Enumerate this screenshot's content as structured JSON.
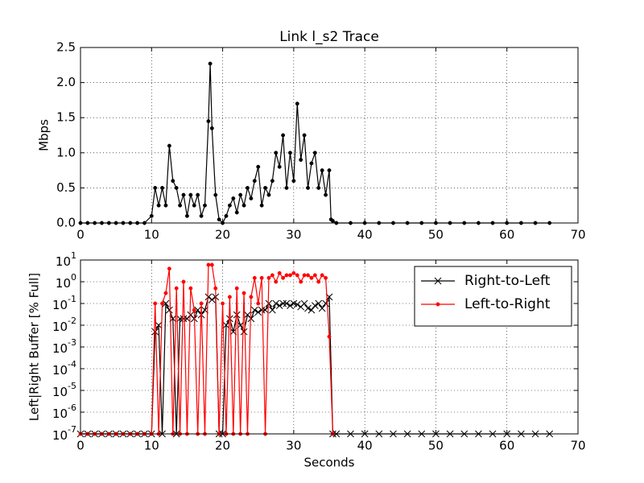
{
  "chart_data": [
    {
      "type": "line",
      "title": "Link l_s2 Trace",
      "ylabel": "Mbps",
      "xlim": [
        0,
        70
      ],
      "xticks": [
        0,
        10,
        20,
        30,
        40,
        50,
        60,
        70
      ],
      "ylim": [
        0,
        2.5
      ],
      "yticks": [
        {
          "value": 0,
          "label": "0.0"
        },
        0.5,
        {
          "value": 1,
          "label": "1.0"
        },
        1.5,
        {
          "value": 2,
          "label": "2.0"
        },
        2.5
      ],
      "grid": true,
      "x": [
        0,
        1,
        2,
        3,
        4,
        5,
        6,
        7,
        8,
        9,
        10,
        10.5,
        11,
        11.5,
        12,
        12.5,
        13,
        13.5,
        14,
        14.5,
        15,
        15.5,
        16,
        16.5,
        17,
        17.5,
        18,
        18.25,
        18.5,
        19,
        19.5,
        20,
        20.5,
        21,
        21.5,
        22,
        22.5,
        23,
        23.5,
        24,
        24.5,
        25,
        25.5,
        26,
        26.5,
        27,
        27.5,
        28,
        28.5,
        29,
        29.5,
        30,
        30.5,
        31,
        31.5,
        32,
        32.5,
        33,
        33.5,
        34,
        34.5,
        35,
        35.25,
        35.5,
        36,
        38,
        40,
        42,
        44,
        46,
        48,
        50,
        52,
        54,
        56,
        58,
        60,
        62,
        64,
        66
      ],
      "series": [
        {
          "color": "#000000",
          "marker": "dot",
          "values": [
            0,
            0,
            0,
            0,
            0,
            0,
            0,
            0,
            0,
            0,
            0.1,
            0.5,
            0.25,
            0.5,
            0.25,
            1.1,
            0.6,
            0.5,
            0.25,
            0.4,
            0.1,
            0.4,
            0.25,
            0.4,
            0.1,
            0.25,
            1.45,
            2.27,
            1.35,
            0.4,
            0.05,
            0,
            0.1,
            0.25,
            0.35,
            0.15,
            0.4,
            0.25,
            0.5,
            0.35,
            0.6,
            0.8,
            0.25,
            0.5,
            0.4,
            0.6,
            1.0,
            0.8,
            1.25,
            0.5,
            1.0,
            0.6,
            1.7,
            0.9,
            1.25,
            0.5,
            0.85,
            1.0,
            0.5,
            0.75,
            0.4,
            0.75,
            0.05,
            0.03,
            0,
            0,
            0,
            0,
            0,
            0,
            0,
            0,
            0,
            0,
            0,
            0,
            0,
            0,
            0,
            0
          ]
        }
      ]
    },
    {
      "type": "line",
      "xlabel": "Seconds",
      "ylabel": "Left|Right Buffer [% Full]",
      "log": true,
      "xlim": [
        0,
        70
      ],
      "xticks": [
        0,
        10,
        20,
        30,
        40,
        50,
        60,
        70
      ],
      "ylim": [
        1e-07,
        10
      ],
      "yticks": [
        {
          "value": 1e-07,
          "label": "10^-7"
        },
        {
          "value": 1e-06,
          "label": "10^-6"
        },
        {
          "value": 1e-05,
          "label": "10^-5"
        },
        {
          "value": 0.0001,
          "label": "10^-4"
        },
        {
          "value": 0.001,
          "label": "10^-3"
        },
        {
          "value": 0.01,
          "label": "10^-2"
        },
        {
          "value": 0.1,
          "label": "10^-1"
        },
        {
          "value": 1,
          "label": "10^0"
        },
        {
          "value": 10,
          "label": "10^1"
        }
      ],
      "grid": true,
      "legend": "upper-right",
      "x": [
        0,
        1,
        2,
        3,
        4,
        5,
        6,
        7,
        8,
        9,
        10,
        10.5,
        11,
        11.5,
        12,
        12.5,
        13,
        13.5,
        14,
        14.5,
        15,
        15.5,
        16,
        16.5,
        17,
        17.5,
        18,
        18.5,
        19,
        19.5,
        20,
        20.5,
        21,
        21.5,
        22,
        22.5,
        23,
        23.5,
        24,
        24.5,
        25,
        25.5,
        26,
        26.5,
        27,
        27.5,
        28,
        28.5,
        29,
        29.5,
        30,
        30.5,
        31,
        31.5,
        32,
        32.5,
        33,
        33.5,
        34,
        34.5,
        35,
        35.5,
        36,
        38,
        40,
        42,
        44,
        46,
        48,
        50,
        52,
        54,
        56,
        58,
        60,
        62,
        64,
        66
      ],
      "series": [
        {
          "name": "Right-to-Left",
          "color": "#000000",
          "marker": "x",
          "values": [
            1e-07,
            1e-07,
            1e-07,
            1e-07,
            1e-07,
            1e-07,
            1e-07,
            1e-07,
            1e-07,
            1e-07,
            1e-07,
            0.005,
            0.01,
            1e-07,
            0.1,
            0.05,
            0.02,
            1e-07,
            0.02,
            0.02,
            0.02,
            0.03,
            0.02,
            0.05,
            0.03,
            0.05,
            0.2,
            0.15,
            0.2,
            1e-07,
            1e-07,
            0.01,
            0.02,
            0.005,
            0.03,
            0.01,
            0.005,
            0.03,
            0.02,
            0.05,
            0.04,
            0.05,
            0.05,
            0.1,
            0.05,
            0.1,
            0.08,
            0.1,
            0.1,
            0.08,
            0.1,
            0.09,
            0.07,
            0.1,
            0.06,
            0.05,
            0.08,
            0.1,
            0.06,
            0.1,
            0.2,
            1e-07,
            1e-07,
            1e-07,
            1e-07,
            1e-07,
            1e-07,
            1e-07,
            1e-07,
            1e-07,
            1e-07,
            1e-07,
            1e-07,
            1e-07,
            1e-07,
            1e-07,
            1e-07,
            1e-07
          ]
        },
        {
          "name": "Left-to-Right",
          "color": "#ff0000",
          "marker": "dot",
          "values": [
            1e-07,
            1e-07,
            1e-07,
            1e-07,
            1e-07,
            1e-07,
            1e-07,
            1e-07,
            1e-07,
            1e-07,
            1e-07,
            0.1,
            1e-07,
            0.1,
            0.3,
            4,
            1e-07,
            0.5,
            1e-07,
            1,
            1e-07,
            0.5,
            0.05,
            1e-07,
            0.1,
            1e-07,
            6,
            6,
            0.5,
            1e-07,
            0.1,
            1e-07,
            0.2,
            1e-07,
            0.5,
            1e-07,
            0.3,
            1e-07,
            0.2,
            1.5,
            0.1,
            1.5,
            1e-07,
            1.5,
            2,
            1,
            2.5,
            1.5,
            2,
            2,
            2.5,
            2,
            1,
            2,
            2,
            1.5,
            2,
            1,
            2,
            1.5,
            0.003,
            1e-07,
            null,
            null,
            null,
            null,
            null,
            null,
            null,
            null,
            null,
            null,
            null,
            null,
            null,
            null,
            null,
            null
          ]
        }
      ]
    }
  ]
}
